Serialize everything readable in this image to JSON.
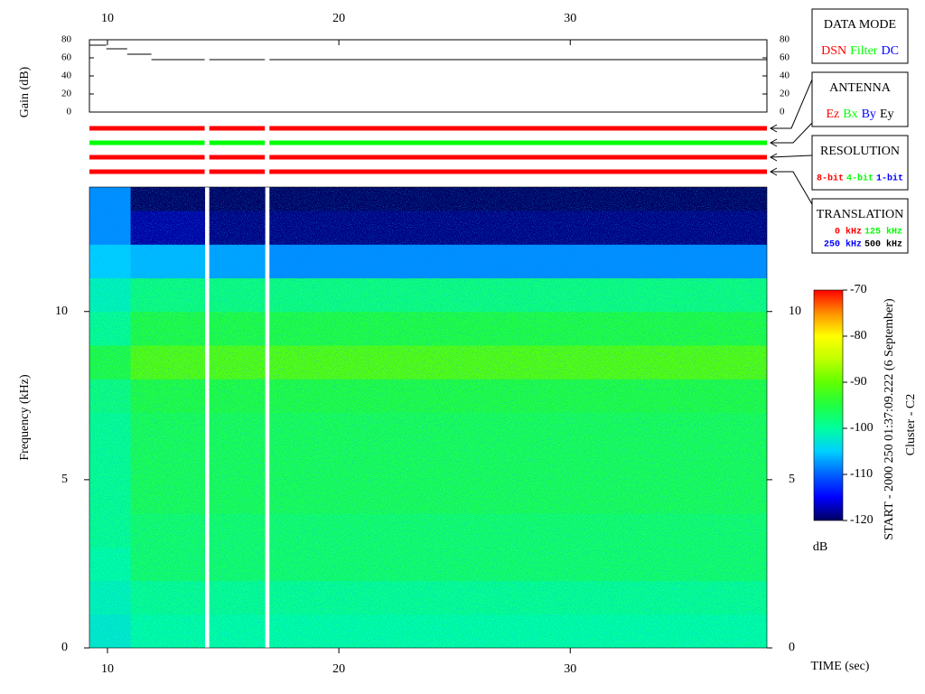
{
  "chart_data": [
    {
      "type": "line",
      "ylabel": "Gain (dB)",
      "x": [
        9.22,
        9.95,
        9.95,
        9.95,
        10.85,
        10.85,
        10.85,
        11.9,
        11.9,
        11.9,
        14.2,
        14.3,
        14.4,
        16.8,
        16.9,
        17.0,
        38.5
      ],
      "values": [
        74,
        74,
        null,
        70,
        70,
        null,
        64,
        64,
        null,
        58,
        58,
        null,
        58,
        58,
        null,
        58,
        58
      ],
      "color": "#000000",
      "xlim": [
        9.22,
        38.5
      ],
      "xticks": [
        10,
        20,
        30
      ],
      "ylim": [
        0,
        80
      ],
      "yticks": [
        0,
        20,
        40,
        60,
        80
      ]
    },
    {
      "type": "status",
      "xlim": [
        9.22,
        38.5
      ],
      "rows": [
        {
          "color": "#ff0000",
          "segments": [
            [
              9.22,
              14.2
            ],
            [
              14.4,
              16.8
            ],
            [
              17.0,
              38.5
            ]
          ]
        },
        {
          "color": "#00ff00",
          "segments": [
            [
              9.22,
              14.2
            ],
            [
              14.4,
              16.8
            ],
            [
              17.0,
              38.5
            ]
          ]
        },
        {
          "color": "#ff0000",
          "segments": [
            [
              9.22,
              14.2
            ],
            [
              14.4,
              16.8
            ],
            [
              17.0,
              38.5
            ]
          ]
        },
        {
          "color": "#ff0000",
          "segments": [
            [
              9.22,
              14.2
            ],
            [
              14.4,
              16.8
            ],
            [
              17.0,
              38.5
            ]
          ]
        }
      ]
    },
    {
      "type": "heatmap",
      "xlabel": "TIME (sec)",
      "ylabel": "Frequency (kHz)",
      "xlim": [
        9.22,
        38.5
      ],
      "xticks": [
        10,
        20,
        30
      ],
      "ylim": [
        0,
        13.7
      ],
      "yticks": [
        0,
        5,
        10
      ],
      "x_edges": [
        9.22,
        11.0,
        14.2,
        14.4,
        16.8,
        17.0,
        38.5
      ],
      "y_edges": [
        0,
        1,
        2,
        3,
        4,
        5,
        6,
        7,
        8,
        9,
        10,
        11,
        12,
        13,
        13.7
      ],
      "z": [
        [
          -102,
          -101,
          -100,
          -99,
          -99,
          -99,
          -99,
          -98,
          -95,
          -99,
          -101,
          -105,
          -108,
          -108
        ],
        [
          -100,
          -99,
          -97,
          -97,
          -96,
          -96,
          -96,
          -95,
          -91,
          -95,
          -98,
          -106,
          -118,
          -120
        ],
        null,
        [
          -100,
          -99,
          -97,
          -97,
          -96,
          -96,
          -96,
          -95,
          -91,
          -95,
          -98,
          -107,
          -119,
          -120
        ],
        null,
        [
          -100,
          -99,
          -97,
          -97,
          -96,
          -96,
          -96,
          -95,
          -91,
          -95,
          -98,
          -108,
          -119,
          -120
        ]
      ],
      "zlim": [
        -120,
        -70
      ],
      "zticks": [
        -70,
        -80,
        -90,
        -100,
        -110,
        -120
      ],
      "zlabel": "dB",
      "colormap": [
        "#000060",
        "#0000ff",
        "#0060ff",
        "#00d0ff",
        "#00ffa0",
        "#20ff40",
        "#60ff00",
        "#c0ff00",
        "#ffff00",
        "#ff9000",
        "#ff0000"
      ]
    }
  ],
  "side_panels": [
    {
      "title": "DATA MODE",
      "items": [
        {
          "text": "DSN",
          "color": "#ff0000"
        },
        {
          "text": "Filter",
          "color": "#00ff00"
        },
        {
          "text": "DC",
          "color": "#0000ff"
        }
      ]
    },
    {
      "title": "ANTENNA",
      "items": [
        {
          "text": "Ez",
          "color": "#ff0000"
        },
        {
          "text": "Bx",
          "color": "#00ff00"
        },
        {
          "text": "By",
          "color": "#0000ff"
        },
        {
          "text": "Ey",
          "color": "#000000"
        }
      ]
    },
    {
      "title": "RESOLUTION",
      "items": [
        {
          "text": "8-bit",
          "color": "#ff0000"
        },
        {
          "text": "4-bit",
          "color": "#00ff00"
        },
        {
          "text": "1-bit",
          "color": "#0000ff"
        }
      ]
    },
    {
      "title": "TRANSLATION",
      "items": [
        {
          "text": "0 kHz",
          "color": "#ff0000"
        },
        {
          "text": "125 kHz",
          "color": "#00ff00"
        },
        {
          "text": "250 kHz",
          "color": "#0000ff"
        },
        {
          "text": "500 kHz",
          "color": "#000000"
        }
      ]
    }
  ],
  "run_info": [
    "START - 2000 250 01:37:09.222 (6 September)",
    "Cluster - C2"
  ]
}
